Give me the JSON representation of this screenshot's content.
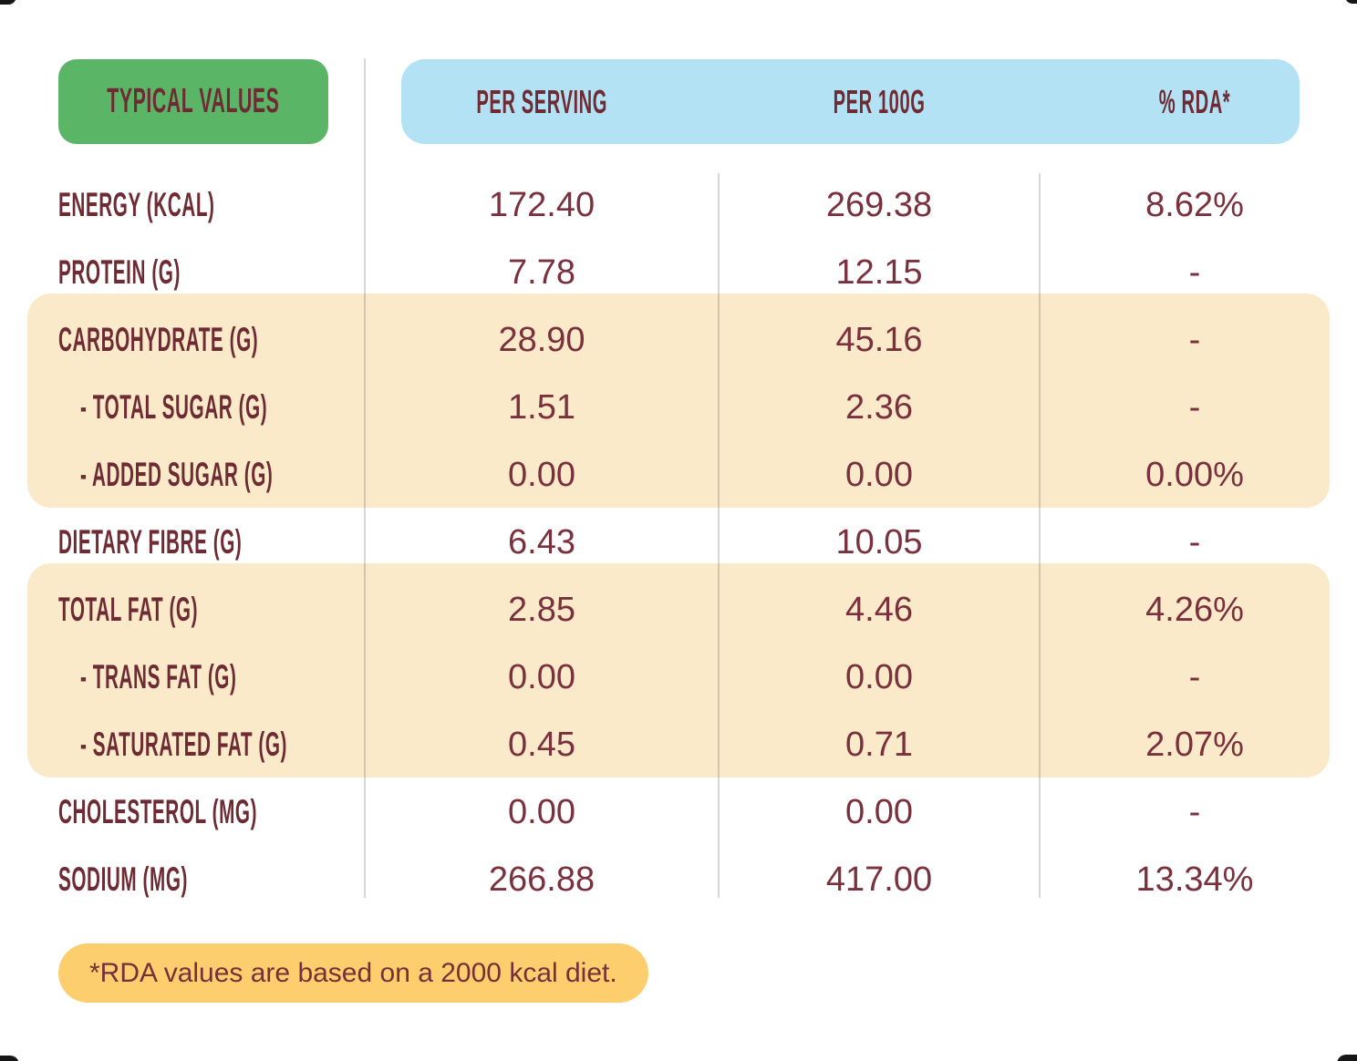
{
  "header": {
    "label_column_title": "TYPICAL VALUES",
    "columns": [
      "PER SERVING",
      "PER 100G",
      "% RDA*"
    ]
  },
  "table": {
    "rows": [
      {
        "label": "ENERGY (KCAL)",
        "per_serving": "172.40",
        "per_100g": "269.38",
        "rda": "8.62%"
      },
      {
        "label": "PROTEIN (G)",
        "per_serving": "7.78",
        "per_100g": "12.15",
        "rda": "-"
      },
      {
        "label": "CARBOHYDRATE (G)",
        "per_serving": "28.90",
        "per_100g": "45.16",
        "rda": "-"
      },
      {
        "label": "- TOTAL SUGAR (G)",
        "per_serving": "1.51",
        "per_100g": "2.36",
        "rda": "-"
      },
      {
        "label": "- ADDED SUGAR (G)",
        "per_serving": "0.00",
        "per_100g": "0.00",
        "rda": "0.00%"
      },
      {
        "label": "DIETARY FIBRE (G)",
        "per_serving": "6.43",
        "per_100g": "10.05",
        "rda": "-"
      },
      {
        "label": "TOTAL FAT (G)",
        "per_serving": "2.85",
        "per_100g": "4.46",
        "rda": "4.26%"
      },
      {
        "label": "- TRANS FAT (G)",
        "per_serving": "0.00",
        "per_100g": "0.00",
        "rda": "-"
      },
      {
        "label": "- SATURATED FAT (G)",
        "per_serving": "0.45",
        "per_100g": "0.71",
        "rda": "2.07%"
      },
      {
        "label": "CHOLESTEROL (MG)",
        "per_serving": "0.00",
        "per_100g": "0.00",
        "rda": "-"
      },
      {
        "label": "SODIUM (MG)",
        "per_serving": "266.88",
        "per_100g": "417.00",
        "rda": "13.34%"
      }
    ],
    "highlighted_row_groups": [
      [
        "CARBOHYDRATE (G)",
        "- TOTAL SUGAR (G)",
        "- ADDED SUGAR (G)"
      ],
      [
        "TOTAL FAT (G)",
        "- TRANS FAT (G)",
        "- SATURATED FAT (G)"
      ]
    ]
  },
  "footnote": {
    "text": "*RDA values are based on a 2000 kcal diet."
  },
  "colors": {
    "badge_green": "#5BB567",
    "header_blue": "#B4E2F5",
    "band_cream": "#FAEACA",
    "footnote_yellow": "#FCCE6D",
    "label_maroon": "#6E2B33",
    "value_maroon": "#7A313D"
  }
}
